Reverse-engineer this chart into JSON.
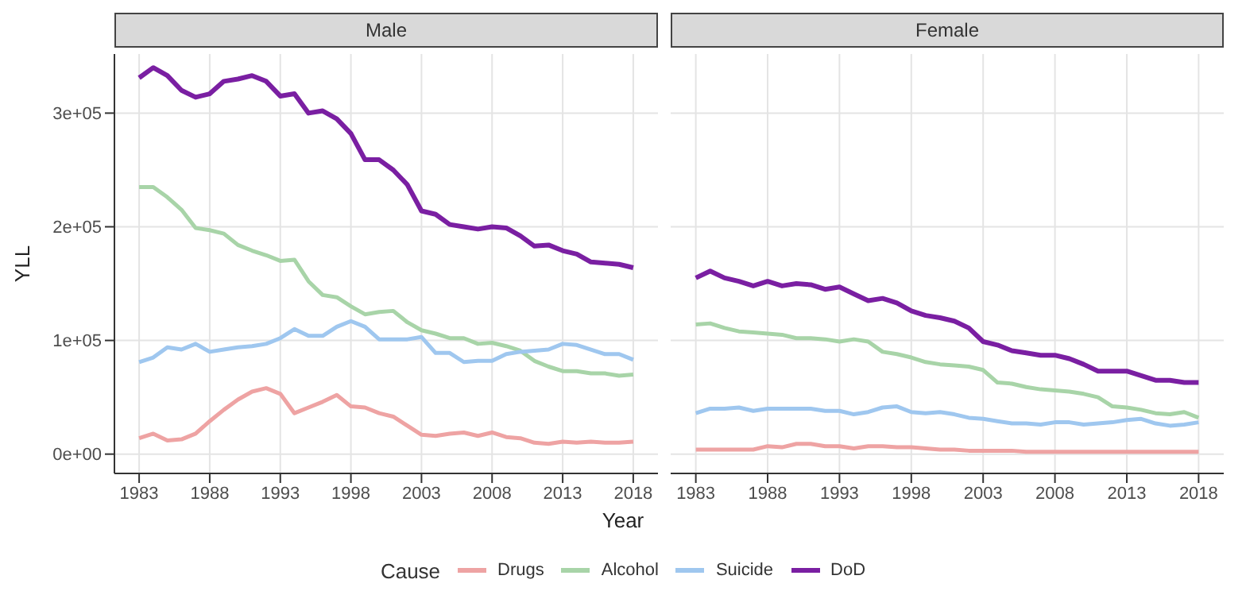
{
  "chart_data": [
    {
      "type": "line",
      "title": "Male",
      "xlabel": "Year",
      "ylabel": "YLL",
      "legend_title": "Cause",
      "legend": "bottom",
      "grid": true,
      "x": [
        1983,
        1984,
        1985,
        1986,
        1987,
        1988,
        1989,
        1990,
        1991,
        1992,
        1993,
        1994,
        1995,
        1996,
        1997,
        1998,
        1999,
        2000,
        2001,
        2002,
        2003,
        2004,
        2005,
        2006,
        2007,
        2008,
        2009,
        2010,
        2011,
        2012,
        2013,
        2014,
        2015,
        2016,
        2017,
        2018
      ],
      "xlim": [
        1981.25,
        2019.75
      ],
      "xticks": [
        1983,
        1988,
        1993,
        1998,
        2003,
        2008,
        2013,
        2018
      ],
      "ylim": [
        -17000,
        352000
      ],
      "yticks": [
        {
          "value": 0,
          "label": "0e+00"
        },
        {
          "value": 100000,
          "label": "1e+05"
        },
        {
          "value": 200000,
          "label": "2e+05"
        },
        {
          "value": 300000,
          "label": "3e+05"
        }
      ],
      "series": [
        {
          "name": "Drugs",
          "color": "#eea3a3",
          "values": [
            14000,
            18000,
            12000,
            13000,
            18000,
            29000,
            39000,
            48000,
            55000,
            58000,
            53000,
            36000,
            41000,
            46000,
            52000,
            42000,
            41000,
            36000,
            33000,
            25000,
            17000,
            16000,
            18000,
            19000,
            16000,
            19000,
            15000,
            14000,
            10000,
            9000,
            11000,
            10000,
            11000,
            10000,
            10000,
            11000
          ]
        },
        {
          "name": "Alcohol",
          "color": "#a8d4a8",
          "values": [
            235000,
            235000,
            226000,
            215000,
            199000,
            197000,
            194000,
            184000,
            179000,
            175000,
            170000,
            171000,
            152000,
            140000,
            138000,
            130000,
            123000,
            125000,
            126000,
            116000,
            109000,
            106000,
            102000,
            102000,
            97000,
            98000,
            95000,
            91000,
            82000,
            77000,
            73000,
            73000,
            71000,
            71000,
            69000,
            70000
          ]
        },
        {
          "name": "Suicide",
          "color": "#9fc7ef",
          "values": [
            81000,
            85000,
            94000,
            92000,
            97000,
            90000,
            92000,
            94000,
            95000,
            97000,
            102000,
            110000,
            104000,
            104000,
            112000,
            117000,
            112000,
            101000,
            101000,
            101000,
            103000,
            89000,
            89000,
            81000,
            82000,
            82000,
            88000,
            90000,
            91000,
            92000,
            97000,
            96000,
            92000,
            88000,
            88000,
            83000
          ]
        },
        {
          "name": "DoD",
          "color": "#7a1fa2",
          "values": [
            331000,
            340000,
            333000,
            320000,
            314000,
            317000,
            328000,
            330000,
            333000,
            328000,
            315000,
            317000,
            300000,
            302000,
            295000,
            282000,
            259000,
            259000,
            250000,
            237000,
            214000,
            211000,
            202000,
            200000,
            198000,
            200000,
            199000,
            192000,
            183000,
            184000,
            179000,
            176000,
            169000,
            168000,
            167000,
            164000
          ]
        }
      ]
    },
    {
      "type": "line",
      "title": "Female",
      "grid": true,
      "tick_labels": "x",
      "x": [
        1983,
        1984,
        1985,
        1986,
        1987,
        1988,
        1989,
        1990,
        1991,
        1992,
        1993,
        1994,
        1995,
        1996,
        1997,
        1998,
        1999,
        2000,
        2001,
        2002,
        2003,
        2004,
        2005,
        2006,
        2007,
        2008,
        2009,
        2010,
        2011,
        2012,
        2013,
        2014,
        2015,
        2016,
        2017,
        2018
      ],
      "xlim": [
        1981.25,
        2019.75
      ],
      "xticks": [
        1983,
        1988,
        1993,
        1998,
        2003,
        2008,
        2013,
        2018
      ],
      "ylim": [
        -17000,
        352000
      ],
      "yticks": [
        0,
        100000,
        200000,
        300000
      ],
      "series": [
        {
          "color": "#eea3a3",
          "values": [
            4000,
            4000,
            4000,
            4000,
            4000,
            7000,
            6000,
            9000,
            9000,
            7000,
            7000,
            5000,
            7000,
            7000,
            6000,
            6000,
            5000,
            4000,
            4000,
            3000,
            3000,
            3000,
            3000,
            2000,
            2000,
            2000,
            2000,
            2000,
            2000,
            2000,
            2000,
            2000,
            2000,
            2000,
            2000,
            2000
          ]
        },
        {
          "color": "#a8d4a8",
          "values": [
            114000,
            115000,
            111000,
            108000,
            107000,
            106000,
            105000,
            102000,
            102000,
            101000,
            99000,
            101000,
            99000,
            90000,
            88000,
            85000,
            81000,
            79000,
            78000,
            77000,
            74000,
            63000,
            62000,
            59000,
            57000,
            56000,
            55000,
            53000,
            50000,
            42000,
            41000,
            39000,
            36000,
            35000,
            37000,
            32000
          ]
        },
        {
          "color": "#9fc7ef",
          "values": [
            36000,
            40000,
            40000,
            41000,
            38000,
            40000,
            40000,
            40000,
            40000,
            38000,
            38000,
            35000,
            37000,
            41000,
            42000,
            37000,
            36000,
            37000,
            35000,
            32000,
            31000,
            29000,
            27000,
            27000,
            26000,
            28000,
            28000,
            26000,
            27000,
            28000,
            30000,
            31000,
            27000,
            25000,
            26000,
            28000
          ]
        },
        {
          "color": "#7a1fa2",
          "values": [
            155000,
            161000,
            155000,
            152000,
            148000,
            152000,
            148000,
            150000,
            149000,
            145000,
            147000,
            141000,
            135000,
            137000,
            133000,
            126000,
            122000,
            120000,
            117000,
            111000,
            99000,
            96000,
            91000,
            89000,
            87000,
            87000,
            84000,
            79000,
            73000,
            73000,
            73000,
            69000,
            65000,
            65000,
            63000,
            63000
          ]
        }
      ]
    }
  ]
}
